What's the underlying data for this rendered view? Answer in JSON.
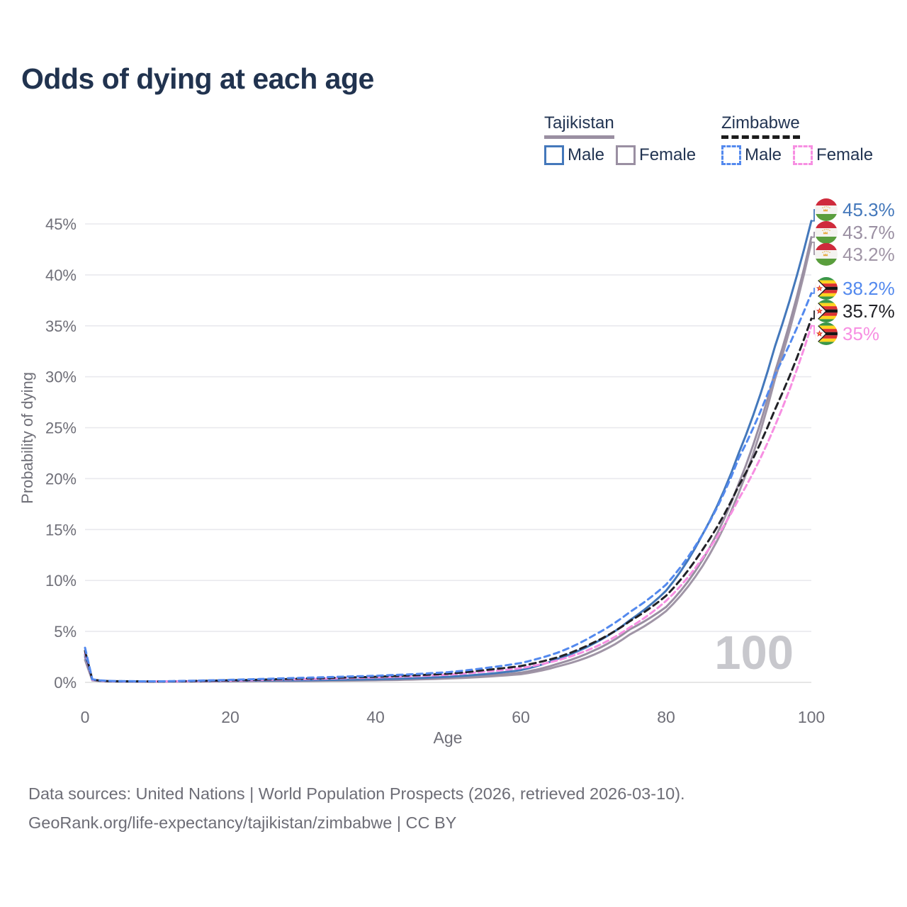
{
  "title": "Odds of dying at each age",
  "watermark": "100",
  "legend": {
    "groups": [
      {
        "label": "Tajikistan",
        "line_style": "solid",
        "underline_color": "#9a8fa2",
        "items": [
          {
            "label": "Male",
            "color": "#4478bb",
            "dashed": false
          },
          {
            "label": "Female",
            "color": "#9a8fa2",
            "dashed": false
          }
        ]
      },
      {
        "label": "Zimbabwe",
        "line_style": "dashed",
        "underline_color": "#1c1c1c",
        "items": [
          {
            "label": "Male",
            "color": "#5389ee",
            "dashed": true
          },
          {
            "label": "Female",
            "color": "#f78fe2",
            "dashed": true
          }
        ]
      }
    ]
  },
  "axes": {
    "x_label": "Age",
    "y_label": "Probability of dying",
    "x_ticks": [
      0,
      20,
      40,
      60,
      80,
      100
    ],
    "y_ticks": [
      0,
      5,
      10,
      15,
      20,
      25,
      30,
      35,
      40,
      45
    ],
    "y_tick_suffix": "%",
    "x_range": [
      0,
      100
    ],
    "y_range_pct": [
      0,
      45
    ],
    "grid": "horizontal-only"
  },
  "chart_data": {
    "type": "line",
    "title": "Odds of dying at each age",
    "xlabel": "Age",
    "ylabel": "Probability of dying",
    "x": [
      0,
      1,
      2,
      3,
      5,
      10,
      15,
      20,
      25,
      30,
      35,
      40,
      45,
      50,
      55,
      60,
      65,
      70,
      75,
      80,
      85,
      90,
      95,
      100
    ],
    "unit": "percent",
    "series": [
      {
        "name": "Tajikistan Male",
        "country": "Tajikistan",
        "sex": "Male",
        "line": "solid",
        "color": "#4478bb",
        "end_label": "45.3%",
        "end_value": 45.3,
        "values": [
          2.7,
          0.25,
          0.17,
          0.13,
          0.09,
          0.08,
          0.11,
          0.16,
          0.18,
          0.21,
          0.25,
          0.3,
          0.4,
          0.55,
          0.8,
          1.2,
          2.3,
          3.8,
          6.1,
          9.0,
          14.5,
          22.5,
          33.0,
          45.3
        ]
      },
      {
        "name": "Tajikistan",
        "country": "Tajikistan",
        "sex": "Both",
        "line": "solid",
        "color": "#9a8fa2",
        "end_label": "43.7%",
        "end_value": 43.7,
        "values": [
          2.5,
          0.22,
          0.15,
          0.11,
          0.08,
          0.07,
          0.09,
          0.12,
          0.14,
          0.17,
          0.21,
          0.25,
          0.33,
          0.46,
          0.65,
          0.95,
          1.8,
          3.1,
          5.2,
          7.4,
          12.0,
          19.5,
          30.5,
          43.7
        ]
      },
      {
        "name": "Tajikistan Female",
        "country": "Tajikistan",
        "sex": "Female",
        "line": "solid",
        "color": "#a095a6",
        "end_label": "43.2%",
        "end_value": 43.2,
        "values": [
          2.2,
          0.2,
          0.13,
          0.1,
          0.07,
          0.06,
          0.08,
          0.1,
          0.12,
          0.13,
          0.16,
          0.2,
          0.27,
          0.38,
          0.55,
          0.8,
          1.55,
          2.7,
          4.7,
          7.0,
          11.4,
          18.6,
          29.8,
          43.2
        ]
      },
      {
        "name": "Zimbabwe Male",
        "country": "Zimbabwe",
        "sex": "Male",
        "line": "dashed",
        "color": "#5389ee",
        "end_label": "38.2%",
        "end_value": 38.2,
        "values": [
          3.4,
          0.3,
          0.2,
          0.15,
          0.12,
          0.1,
          0.17,
          0.25,
          0.35,
          0.45,
          0.55,
          0.65,
          0.8,
          1.0,
          1.4,
          1.9,
          2.9,
          4.6,
          6.9,
          9.6,
          14.5,
          22.0,
          30.2,
          38.2
        ]
      },
      {
        "name": "Zimbabwe",
        "country": "Zimbabwe",
        "sex": "Both",
        "line": "dashed",
        "color": "#212126",
        "end_label": "35.7%",
        "end_value": 35.7,
        "values": [
          3.1,
          0.27,
          0.18,
          0.13,
          0.11,
          0.09,
          0.14,
          0.2,
          0.28,
          0.38,
          0.46,
          0.55,
          0.68,
          0.85,
          1.2,
          1.6,
          2.45,
          3.9,
          6.0,
          8.5,
          13.0,
          19.3,
          26.8,
          35.7
        ]
      },
      {
        "name": "Zimbabwe Female",
        "country": "Zimbabwe",
        "sex": "Female",
        "line": "dashed",
        "color": "#f78fe2",
        "end_label": "35%",
        "end_value": 35.0,
        "values": [
          2.9,
          0.25,
          0.17,
          0.12,
          0.1,
          0.08,
          0.12,
          0.17,
          0.24,
          0.32,
          0.4,
          0.48,
          0.6,
          0.75,
          1.05,
          1.4,
          2.15,
          3.4,
          5.4,
          8.0,
          12.2,
          18.0,
          25.2,
          35.0
        ]
      }
    ],
    "legend_position": "top-right"
  },
  "footer": {
    "line1": "Data sources: United Nations | World Population Prospects (2026, retrieved 2026-03-10).",
    "line2": "GeoRank.org/life-expectancy/tajikistan/zimbabwe | CC BY"
  },
  "colors": {
    "title_text": "#21334f",
    "axis_text": "#6f6f78",
    "gridline": "#e9e9ee",
    "watermark": "#c8c8cd",
    "background": "#ffffff"
  }
}
